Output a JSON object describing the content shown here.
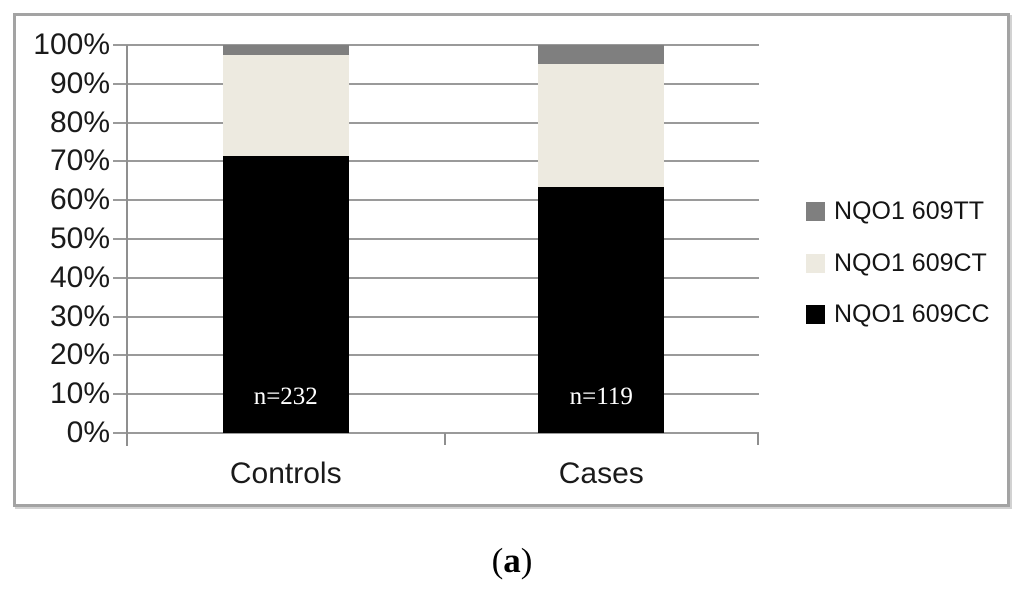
{
  "figure": {
    "caption": {
      "open": "(",
      "letter": "a",
      "close": ")"
    }
  },
  "chart_data": {
    "type": "bar",
    "subtype": "stacked-100-percent",
    "title": "",
    "xlabel": "",
    "ylabel": "",
    "categories": [
      "Controls",
      "Cases"
    ],
    "series": [
      {
        "name": "NQO1 609CC",
        "color": "#000000",
        "values": [
          71.5,
          63.5
        ]
      },
      {
        "name": "NQO1 609CT",
        "color": "#EDEAE0",
        "values": [
          26.0,
          31.5
        ]
      },
      {
        "name": "NQO1 609TT",
        "color": "#7F7F7F",
        "values": [
          2.5,
          5.0
        ]
      }
    ],
    "bar_labels": [
      "n=232",
      "n=119"
    ],
    "bar_label_color": "#FFFFFF",
    "y_ticks": [
      "0%",
      "10%",
      "20%",
      "30%",
      "40%",
      "50%",
      "60%",
      "70%",
      "80%",
      "90%",
      "100%"
    ],
    "ylim": [
      0,
      100
    ],
    "grid": true,
    "legend_position": "right",
    "legend_order": [
      "NQO1 609TT",
      "NQO1 609CT",
      "NQO1 609CC"
    ]
  },
  "colors": {
    "gridline": "#9A9A9A",
    "axis": "#8F8F8F",
    "frame_border": "#A3A3A3",
    "text": "#1A1A1A"
  }
}
